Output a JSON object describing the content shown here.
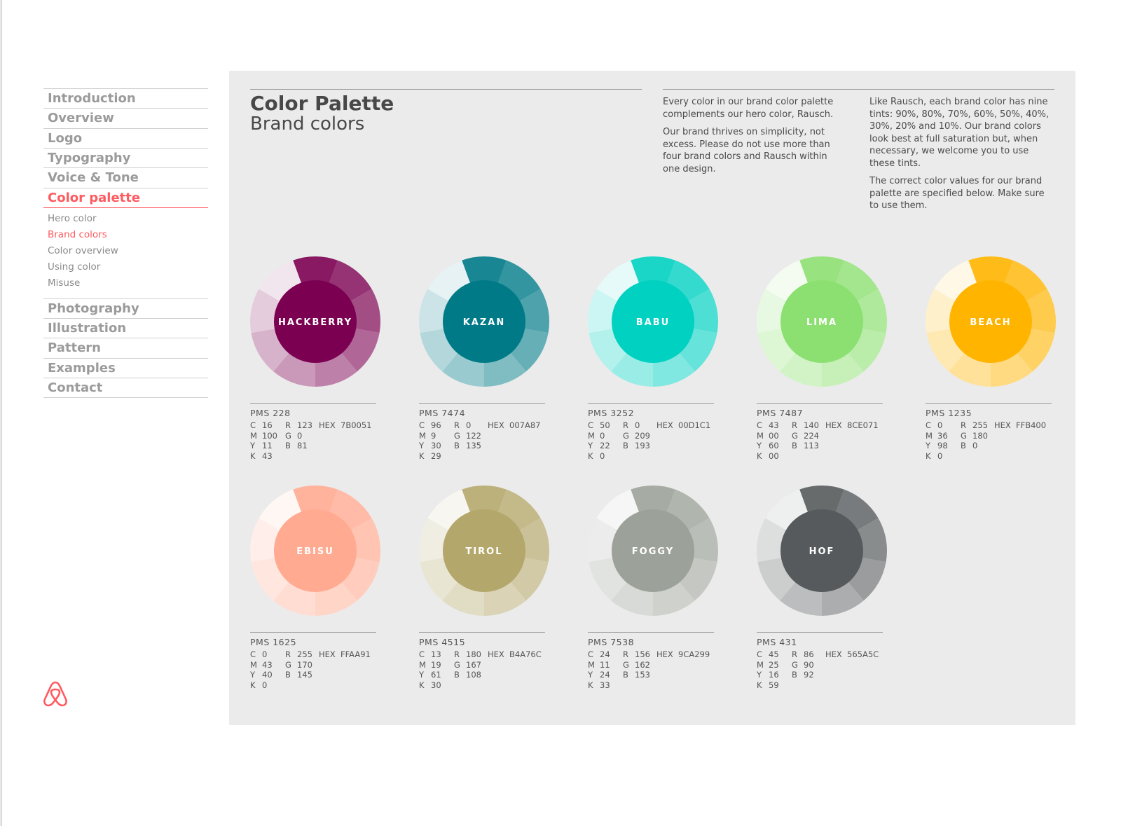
{
  "nav": {
    "main_top": [
      "Introduction",
      "Overview",
      "Logo",
      "Typography",
      "Voice & Tone",
      "Color palette"
    ],
    "sub": [
      "Hero color",
      "Brand colors",
      "Color overview",
      "Using color",
      "Misuse"
    ],
    "main_bottom": [
      "Photography",
      "Illustration",
      "Pattern",
      "Examples",
      "Contact"
    ]
  },
  "header": {
    "title": "Color Palette",
    "subtitle": "Brand colors"
  },
  "intro": {
    "column1": [
      "Every color in our brand color palette complements our hero color, Rausch.",
      "Our brand thrives on simplicity, not excess. Please do not use more than four brand colors and Rausch within one design."
    ],
    "column2": [
      "Like Rausch, each brand color has nine tints: 90%, 80%, 70%, 60%, 50%, 40%, 30%, 20% and 10%. Our brand colors look best at full saturation but, when necessary, we welcome you to use these tints.",
      "The correct color values for our brand palette are specified below. Make sure to use them."
    ]
  },
  "swatches": [
    {
      "name": "HACKBERRY",
      "pms": "PMS 228",
      "cmyk": [
        [
          "C",
          "16"
        ],
        [
          "M",
          "100"
        ],
        [
          "Y",
          "11"
        ],
        [
          "K",
          "43"
        ]
      ],
      "rgb": [
        [
          "R",
          "123"
        ],
        [
          "G",
          "0"
        ],
        [
          "B",
          "81"
        ]
      ],
      "hex": [
        "HEX",
        "7B0051"
      ]
    },
    {
      "name": "KAZAN",
      "pms": "PMS 7474",
      "cmyk": [
        [
          "C",
          "96"
        ],
        [
          "M",
          "9"
        ],
        [
          "Y",
          "30"
        ],
        [
          "K",
          "29"
        ]
      ],
      "rgb": [
        [
          "R",
          "0"
        ],
        [
          "G",
          "122"
        ],
        [
          "B",
          "135"
        ]
      ],
      "hex": [
        "HEX",
        "007A87"
      ]
    },
    {
      "name": "BABU",
      "pms": "PMS 3252",
      "cmyk": [
        [
          "C",
          "50"
        ],
        [
          "M",
          "0"
        ],
        [
          "Y",
          "22"
        ],
        [
          "K",
          "0"
        ]
      ],
      "rgb": [
        [
          "R",
          "0"
        ],
        [
          "G",
          "209"
        ],
        [
          "B",
          "193"
        ]
      ],
      "hex": [
        "HEX",
        "00D1C1"
      ]
    },
    {
      "name": "LIMA",
      "pms": "PMS 7487",
      "cmyk": [
        [
          "C",
          "43"
        ],
        [
          "M",
          "00"
        ],
        [
          "Y",
          "60"
        ],
        [
          "K",
          "00"
        ]
      ],
      "rgb": [
        [
          "R",
          "140"
        ],
        [
          "G",
          "224"
        ],
        [
          "B",
          "113"
        ]
      ],
      "hex": [
        "HEX",
        "8CE071"
      ]
    },
    {
      "name": "BEACH",
      "pms": "PMS 1235",
      "cmyk": [
        [
          "C",
          "0"
        ],
        [
          "M",
          "36"
        ],
        [
          "Y",
          "98"
        ],
        [
          "K",
          "0"
        ]
      ],
      "rgb": [
        [
          "R",
          "255"
        ],
        [
          "G",
          "180"
        ],
        [
          "B",
          "0"
        ]
      ],
      "hex": [
        "HEX",
        "FFB400"
      ]
    },
    {
      "name": "EBISU",
      "pms": "PMS 1625",
      "cmyk": [
        [
          "C",
          "0"
        ],
        [
          "M",
          "43"
        ],
        [
          "Y",
          "40"
        ],
        [
          "K",
          "0"
        ]
      ],
      "rgb": [
        [
          "R",
          "255"
        ],
        [
          "G",
          "170"
        ],
        [
          "B",
          "145"
        ]
      ],
      "hex": [
        "HEX",
        "FFAA91"
      ]
    },
    {
      "name": "TIROL",
      "pms": "PMS 4515",
      "cmyk": [
        [
          "C",
          "13"
        ],
        [
          "M",
          "19"
        ],
        [
          "Y",
          "61"
        ],
        [
          "K",
          "30"
        ]
      ],
      "rgb": [
        [
          "R",
          "180"
        ],
        [
          "G",
          "167"
        ],
        [
          "B",
          "108"
        ]
      ],
      "hex": [
        "HEX",
        "B4A76C"
      ]
    },
    {
      "name": "FOGGY",
      "pms": "PMS 7538",
      "cmyk": [
        [
          "C",
          "24"
        ],
        [
          "M",
          "11"
        ],
        [
          "Y",
          "24"
        ],
        [
          "K",
          "33"
        ]
      ],
      "rgb": [
        [
          "R",
          "156"
        ],
        [
          "G",
          "162"
        ],
        [
          "B",
          "153"
        ]
      ],
      "hex": [
        "HEX",
        "9CA299"
      ]
    },
    {
      "name": "HOF",
      "pms": "PMS 431",
      "cmyk": [
        [
          "C",
          "45"
        ],
        [
          "M",
          "25"
        ],
        [
          "Y",
          "16"
        ],
        [
          "K",
          "59"
        ]
      ],
      "rgb": [
        [
          "R",
          "86"
        ],
        [
          "G",
          "90"
        ],
        [
          "B",
          "92"
        ]
      ],
      "hex": [
        "HEX",
        "565A5C"
      ]
    }
  ]
}
